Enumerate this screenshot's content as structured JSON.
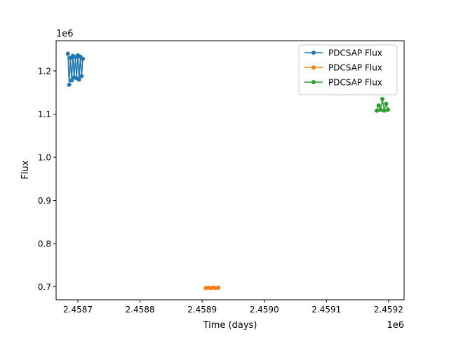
{
  "chart_data": {
    "type": "line",
    "xlabel": "Time (days)",
    "ylabel": "Flux",
    "x_offset_label": "1e6",
    "y_offset_label": "1e6",
    "xlim": [
      2458665,
      2459225
    ],
    "ylim": [
      670000,
      1270000
    ],
    "x_ticks": [
      {
        "value": 2458700,
        "label": "2.4587"
      },
      {
        "value": 2458800,
        "label": "2.4588"
      },
      {
        "value": 2458900,
        "label": "2.4589"
      },
      {
        "value": 2459000,
        "label": "2.4590"
      },
      {
        "value": 2459100,
        "label": "2.4591"
      },
      {
        "value": 2459200,
        "label": "2.4592"
      }
    ],
    "y_ticks": [
      {
        "value": 700000,
        "label": "0.7"
      },
      {
        "value": 800000,
        "label": "0.8"
      },
      {
        "value": 900000,
        "label": "0.9"
      },
      {
        "value": 1000000,
        "label": "1.0"
      },
      {
        "value": 1100000,
        "label": "1.1"
      },
      {
        "value": 1200000,
        "label": "1.2"
      }
    ],
    "grid": false,
    "legend_position": "top-right",
    "series": [
      {
        "name": "PDCSAP Flux",
        "color": "#1f77b4",
        "x": [
          2458684,
          2458686,
          2458688,
          2458690,
          2458692,
          2458694,
          2458696,
          2458698,
          2458700,
          2458702,
          2458704,
          2458706,
          2458708
        ],
        "y": [
          1240000,
          1168000,
          1230000,
          1178000,
          1235000,
          1185000,
          1232000,
          1183000,
          1236000,
          1180000,
          1233000,
          1188000,
          1228000
        ]
      },
      {
        "name": "PDCSAP Flux",
        "color": "#ff7f0e",
        "x": [
          2458906,
          2458910,
          2458914,
          2458918,
          2458922,
          2458926
        ],
        "y": [
          697000,
          698000,
          697000,
          698000,
          697000,
          698000
        ]
      },
      {
        "name": "PDCSAP Flux",
        "color": "#2ca02c",
        "x": [
          2459181,
          2459184,
          2459187,
          2459190,
          2459193,
          2459196,
          2459199
        ],
        "y": [
          1108000,
          1120000,
          1110000,
          1135000,
          1108000,
          1124000,
          1110000
        ]
      }
    ]
  }
}
